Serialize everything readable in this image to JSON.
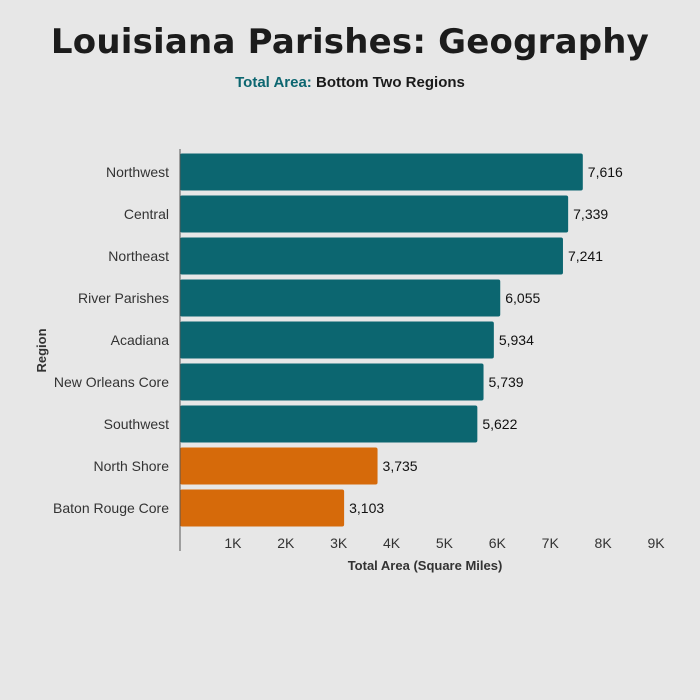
{
  "title": "Louisiana Parishes: Geography",
  "subtitle": {
    "highlight": "Total Area:",
    "rest": "Bottom Two Regions"
  },
  "colors": {
    "default_bar": "#0c6670",
    "highlight_bar": "#d66a0a",
    "background": "#e7e7e7"
  },
  "chart_data": {
    "type": "bar",
    "orientation": "horizontal",
    "xlabel": "Total Area (Square Miles)",
    "ylabel": "Region",
    "xlim": [
      0,
      9000
    ],
    "xticks": [
      1000,
      2000,
      3000,
      4000,
      5000,
      6000,
      7000,
      8000,
      9000
    ],
    "xtick_labels": [
      "1K",
      "2K",
      "3K",
      "4K",
      "5K",
      "6K",
      "7K",
      "8K",
      "9K"
    ],
    "grid": false,
    "categories": [
      "Northwest",
      "Central",
      "Northeast",
      "River Parishes",
      "Acadiana",
      "New Orleans Core",
      "Southwest",
      "North Shore",
      "Baton Rouge Core"
    ],
    "values": [
      7616,
      7339,
      7241,
      6055,
      5934,
      5739,
      5622,
      3735,
      3103
    ],
    "value_labels": [
      "7,616",
      "7,339",
      "7,241",
      "6,055",
      "5,934",
      "5,739",
      "5,622",
      "3,735",
      "3,103"
    ],
    "highlighted": [
      "North Shore",
      "Baton Rouge Core"
    ]
  }
}
